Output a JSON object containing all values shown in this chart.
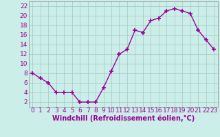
{
  "x": [
    0,
    1,
    2,
    3,
    4,
    5,
    6,
    7,
    8,
    9,
    10,
    11,
    12,
    13,
    14,
    15,
    16,
    17,
    18,
    19,
    20,
    21,
    22,
    23
  ],
  "y": [
    8,
    7,
    6,
    4,
    4,
    4,
    2,
    2,
    2,
    5,
    8.5,
    12,
    13,
    17,
    16.5,
    19,
    19.5,
    21,
    21.5,
    21,
    20.5,
    17,
    15,
    13
  ],
  "line_color": "#990099",
  "marker": "+",
  "marker_size": 4,
  "marker_linewidth": 1.2,
  "bg_color": "#cceee8",
  "grid_color": "#aacccc",
  "xlabel": "Windchill (Refroidissement éolien,°C)",
  "xlabel_fontsize": 7,
  "xlabel_color": "#990099",
  "ylabel_ticks": [
    2,
    4,
    6,
    8,
    10,
    12,
    14,
    16,
    18,
    20,
    22
  ],
  "xlim": [
    -0.5,
    23.5
  ],
  "ylim": [
    1,
    23
  ],
  "tick_fontsize": 6.5,
  "tick_color": "#990099",
  "line_width": 1.0,
  "spine_color": "#888888"
}
